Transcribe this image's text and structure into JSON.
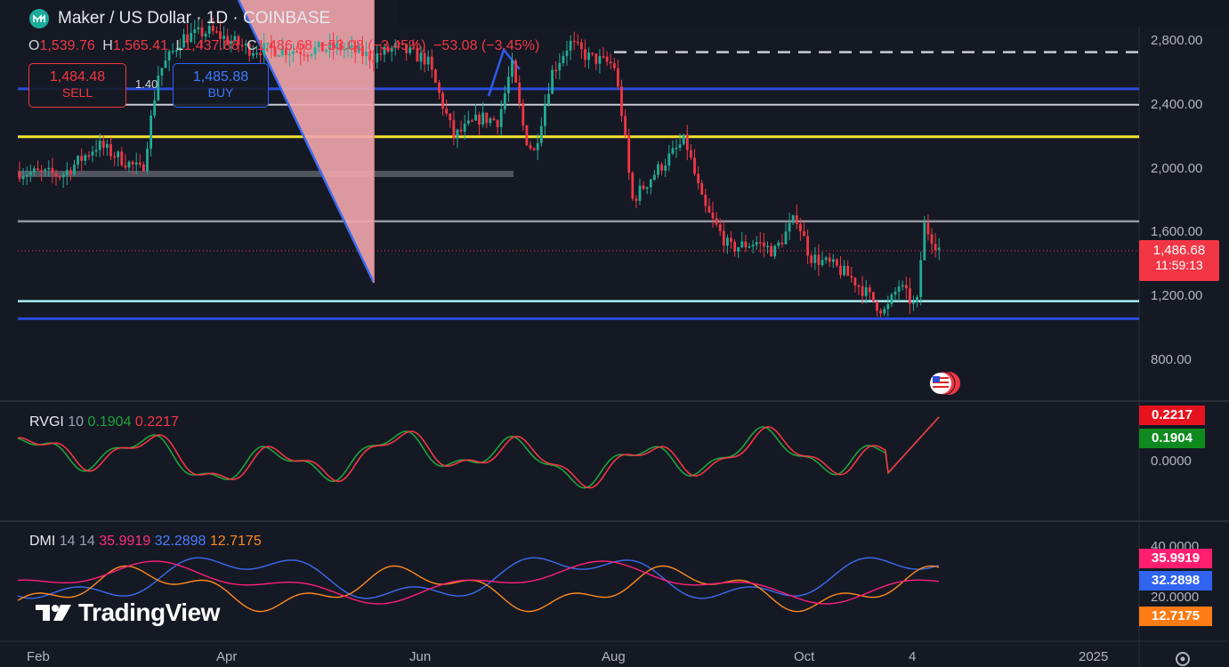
{
  "header": {
    "symbol_title": "Maker / US Dollar · 1D · COINBASE",
    "ohlc": {
      "o_label": "O",
      "o_value": "1,539.76",
      "h_label": "H",
      "h_value": "1,565.41",
      "l_label": "L",
      "l_value": "1,437.88",
      "c_label": "C",
      "c_value": "1,486.68",
      "change": "−53.08 (−3.45%)",
      "change_repeat": "−53.08 (−3.45%)"
    },
    "sell": {
      "price": "1,484.48",
      "label": "SELL"
    },
    "spread": "1.40",
    "buy": {
      "price": "1,485.88",
      "label": "BUY"
    }
  },
  "toolbar": {
    "icons": [
      "cursor-icon",
      "trend-line-icon",
      "fib-retracement-icon",
      "brush-icon",
      "text-icon",
      "pattern-icon",
      "prediction-icon",
      "measure-icon",
      "zoom-icon",
      "magnet-icon",
      "lock-icon",
      "eye-icon",
      "trash-icon",
      "favorites-icon",
      "object-tree-icon",
      "settings-icon"
    ]
  },
  "price_axis": {
    "ticks": [
      "2,800.00",
      "2,400.00",
      "2,000.00",
      "1,600.00",
      "1,200.00",
      "800.00"
    ],
    "last_price": "1,486.68",
    "countdown": "11:59:13"
  },
  "time_axis": {
    "ticks": [
      "Feb",
      "Apr",
      "Jun",
      "Aug",
      "Oct",
      "4",
      "2025"
    ]
  },
  "rvgi": {
    "name": "RVGI",
    "param": "10",
    "value1": "0.1904",
    "value2": "0.2217",
    "axis_badge_top": "0.2217",
    "axis_badge_bottom": "0.1904",
    "axis_tick": "0.0000"
  },
  "dmi": {
    "name": "DMI",
    "params": "14 14",
    "value1": "35.9919",
    "value2": "32.2898",
    "value3": "12.7175",
    "axis_ticks": [
      "40.0000",
      "20.0000"
    ],
    "axis_badges": [
      "35.9919",
      "32.2898",
      "12.7175"
    ]
  },
  "watermark": "TradingView",
  "colors": {
    "background": "#151924",
    "up": "#22ab94",
    "down": "#f23645",
    "sell_red": "#f23645",
    "buy_blue": "#2962ff",
    "line_yellow": "#f5e033",
    "line_blue": "#2a4cd9",
    "line_cyan": "#a8f0f0",
    "dmi_plus": "#ff1f7a",
    "dmi_minus": "#3c6cf0",
    "adx": "#ff8a1e"
  },
  "price_levels": {
    "dashed": 2730,
    "blue_upper": 2500,
    "grey": 2400,
    "yellow": 2200,
    "grey_mid": 1670,
    "cyan": 1170,
    "blue_lower": 1060
  }
}
